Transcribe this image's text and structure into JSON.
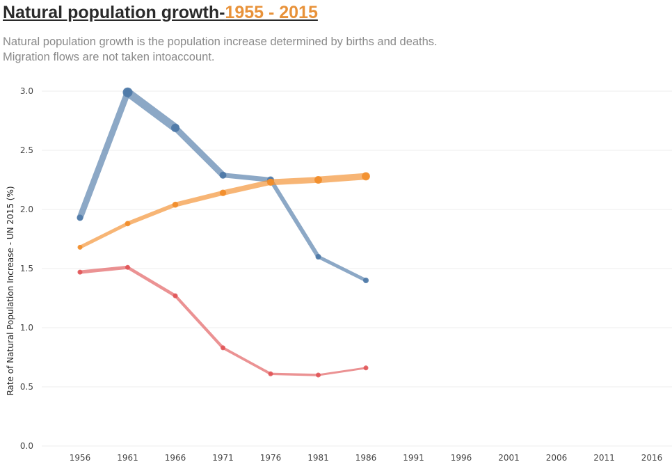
{
  "header": {
    "title_main": "Natural population growth-",
    "title_range": "1955 - 2015",
    "subtitle_line1": "Natural population growth is the population increase determined by births and deaths.",
    "subtitle_line2": "Migration flows are not taken intoaccount."
  },
  "chart_data": {
    "type": "line",
    "title": "Natural population growth-1955 - 2015",
    "xlabel": "",
    "ylabel": "Rate of Natural Population Increase  -  UN 2015 (%)",
    "x_ticks": [
      "1956",
      "1961",
      "1966",
      "1971",
      "1976",
      "1981",
      "1986",
      "1991",
      "1996",
      "2001",
      "2006",
      "2011",
      "2016"
    ],
    "y_ticks": [
      "0.0",
      "0.5",
      "1.0",
      "1.5",
      "2.0",
      "2.5",
      "3.0"
    ],
    "xlim": [
      1956,
      2016
    ],
    "ylim": [
      0,
      3
    ],
    "grid": true,
    "series": [
      {
        "name": "series-blue",
        "color": "#4e79a7",
        "x": [
          1956,
          1961,
          1966,
          1971,
          1976,
          1981,
          1986
        ],
        "values": [
          1.93,
          2.99,
          2.69,
          2.29,
          2.25,
          1.6,
          1.4
        ]
      },
      {
        "name": "series-orange",
        "color": "#f28e2b",
        "x": [
          1956,
          1961,
          1966,
          1971,
          1976,
          1981,
          1986
        ],
        "values": [
          1.68,
          1.88,
          2.04,
          2.14,
          2.23,
          2.25,
          2.28
        ]
      },
      {
        "name": "series-red",
        "color": "#e15759",
        "x": [
          1956,
          1961,
          1966,
          1971,
          1976,
          1981,
          1986
        ],
        "values": [
          1.47,
          1.51,
          1.27,
          0.83,
          0.61,
          0.6,
          0.66
        ]
      }
    ]
  }
}
